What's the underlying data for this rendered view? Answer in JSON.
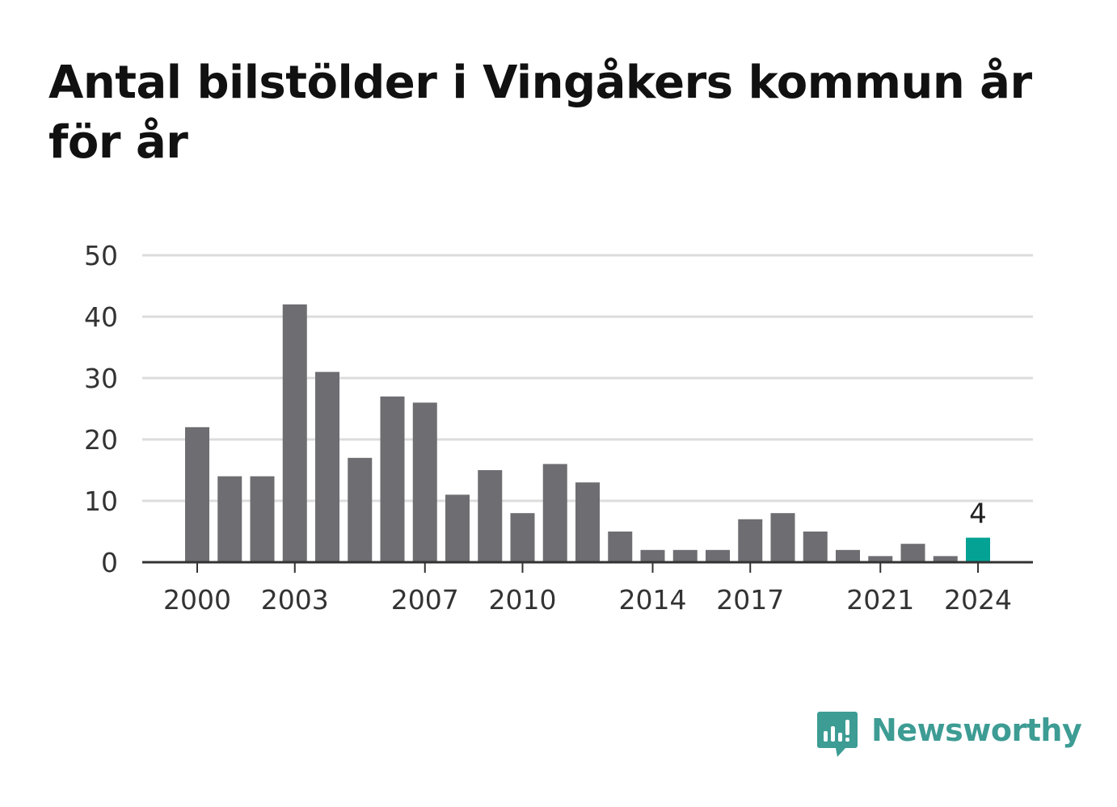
{
  "chart_data": {
    "type": "bar",
    "title": "Antal bilstölder i Vingåkers kommun år för år",
    "xlabel": "",
    "ylabel": "",
    "categories": [
      "2000",
      "2001",
      "2002",
      "2003",
      "2004",
      "2005",
      "2006",
      "2007",
      "2008",
      "2009",
      "2010",
      "2011",
      "2012",
      "2013",
      "2014",
      "2015",
      "2016",
      "2017",
      "2018",
      "2019",
      "2020",
      "2021",
      "2022",
      "2023",
      "2024"
    ],
    "values": [
      22,
      14,
      14,
      42,
      31,
      17,
      27,
      26,
      11,
      15,
      8,
      16,
      13,
      5,
      2,
      2,
      2,
      7,
      8,
      5,
      2,
      1,
      3,
      1,
      4
    ],
    "ylim": [
      0,
      50
    ],
    "yticks": [
      "0",
      "10",
      "20",
      "30",
      "40",
      "50"
    ],
    "xticks": [
      "2000",
      "2003",
      "2007",
      "2010",
      "2014",
      "2017",
      "2021",
      "2024"
    ],
    "highlight": {
      "category": "2024",
      "label": "4"
    },
    "grid": true,
    "legend": "none",
    "colors": {
      "bar": "#6e6d72",
      "highlight": "#04a294",
      "grid": "#dcdcdc",
      "axis": "#333333",
      "text": "#333333"
    }
  },
  "brand": {
    "name": "Newsworthy",
    "logo_icon": "newsworthy-logo-icon",
    "color": "#3d9c94"
  }
}
